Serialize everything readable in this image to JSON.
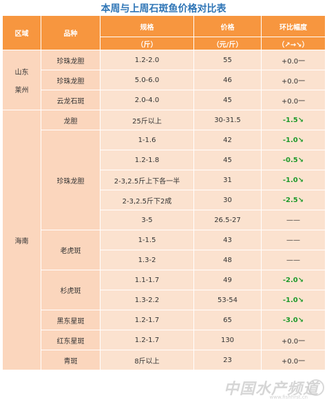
{
  "title": "本周与上周石斑鱼价格对比表",
  "headers": {
    "region": "区域",
    "variety": "品种",
    "spec": "规格",
    "spec_unit": "（斤）",
    "price": "价格",
    "price_unit": "（元/斤）",
    "change": "环比幅度",
    "change_unit": "（↗→↘）"
  },
  "regions": {
    "shandong_line1": "山东",
    "shandong_line2": "莱州",
    "hainan": "海南"
  },
  "rows": [
    {
      "variety": "珍珠龙胆",
      "spec": "1.2-2.0",
      "price": "55",
      "change": "+0.0一"
    },
    {
      "variety": "珍珠龙胆",
      "spec": "5.0-6.0",
      "price": "46",
      "change": "+0.0一"
    },
    {
      "variety": "云龙石斑",
      "spec": "2.0-4.0",
      "price": "45",
      "change": "+0.0一"
    },
    {
      "variety": "龙胆",
      "spec": "25斤以上",
      "price": "30-31.5",
      "change": "-1.5↘"
    },
    {
      "variety": "珍珠龙胆",
      "spec": "1-1.6",
      "price": "42",
      "change": "-1.0↘"
    },
    {
      "variety": "",
      "spec": "1.2-1.8",
      "price": "45",
      "change": "-0.5↘"
    },
    {
      "variety": "",
      "spec": "2-3,2.5斤上下各一半",
      "price": "31",
      "change": "-1.0↘"
    },
    {
      "variety": "",
      "spec": "2-3,2.5斤下2成",
      "price": "30",
      "change": "-2.5↘"
    },
    {
      "variety": "",
      "spec": "3-5",
      "price": "26.5-27",
      "change": "——"
    },
    {
      "variety": "老虎斑",
      "spec": "1-1.5",
      "price": "43",
      "change": "——"
    },
    {
      "variety": "",
      "spec": "1.3-2",
      "price": "48",
      "change": "——"
    },
    {
      "variety": "杉虎斑",
      "spec": "1.1-1.7",
      "price": "49",
      "change": "-2.0↘"
    },
    {
      "variety": "",
      "spec": "1.3-2.2",
      "price": "53-54",
      "change": "-1.0↘"
    },
    {
      "variety": "黑东星斑",
      "spec": "1.2-1.7",
      "price": "65",
      "change": "-3.0↘"
    },
    {
      "variety": "红东星斑",
      "spec": "1.2-1.7",
      "price": "130",
      "change": "+0.0一"
    },
    {
      "variety": "青斑",
      "spec": "8斤以上",
      "price": "23",
      "change": "+0.0一"
    }
  ],
  "watermark": "中国水产频道",
  "watermark_sub": "www.fishfirst.cn"
}
